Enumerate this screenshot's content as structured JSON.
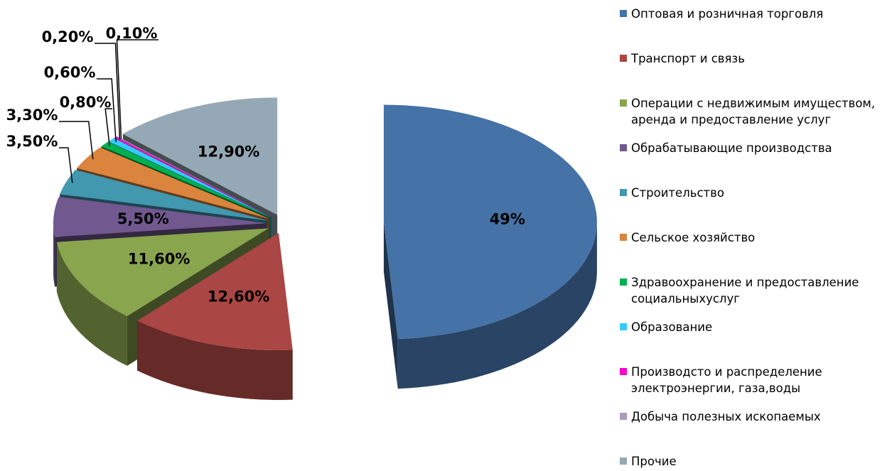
{
  "chart_data": {
    "type": "pie",
    "three_d": true,
    "exploded": true,
    "legend": "right",
    "categories": [
      "Оптовая и розничная торговля",
      "Транспорт и связь",
      "Операции с недвижимым имуществом, аренда и предоставление услуг",
      "Обрабатывающие производства",
      "Строительство",
      "Сельское хозяйство",
      "Здравоохранение и предоставление социальныхуслуг",
      "Образование",
      "Производсто и распределение электроэнергии, газа,воды",
      "Добыча полезных ископаемых",
      "Прочие"
    ],
    "values": [
      49,
      12.6,
      11.6,
      5.5,
      3.5,
      3.3,
      0.8,
      0.6,
      0.2,
      0.1,
      12.9
    ],
    "value_labels": [
      "49%",
      "12,60%",
      "11,60%",
      "5,50%",
      "3,50%",
      "3,30%",
      "0,80%",
      "0,60%",
      "0,20%",
      "0,10%",
      "12,90%"
    ],
    "colors": [
      "#4572a7",
      "#aa4643",
      "#89a54e",
      "#71588f",
      "#4198af",
      "#db843d",
      "#00b050",
      "#33ccff",
      "#ff00cc",
      "#a99bbd",
      "#95a8b5"
    ]
  }
}
